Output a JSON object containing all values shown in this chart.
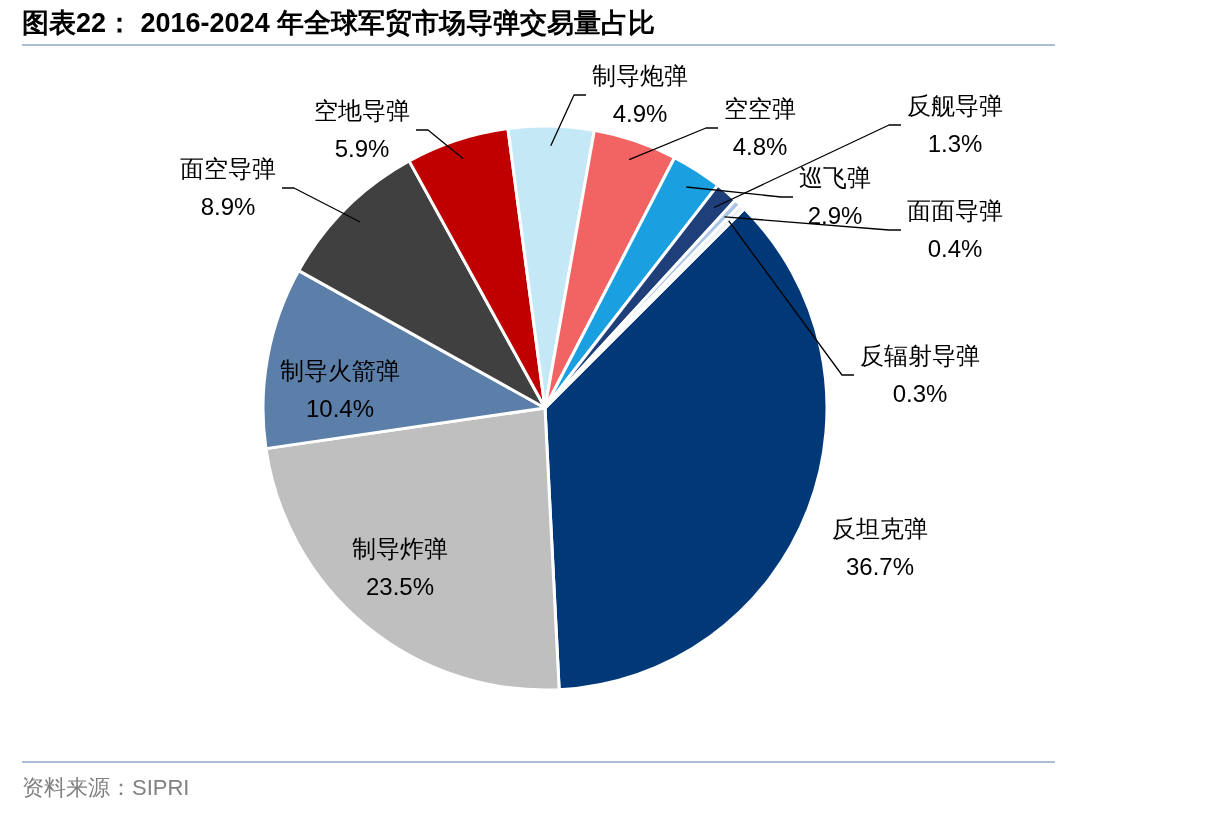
{
  "chart_data": {
    "type": "pie",
    "title": "图表22： 2016-2024 年全球军贸市场导弹交易量占比",
    "categories": [
      "反坦克弹",
      "制导炸弹",
      "制导火箭弹",
      "面空导弹",
      "空地导弹",
      "制导炮弹",
      "空空弹",
      "巡飞弹",
      "反舰导弹",
      "面面导弹",
      "反辐射导弹"
    ],
    "values": [
      36.7,
      23.5,
      10.4,
      8.9,
      5.9,
      4.9,
      4.8,
      2.9,
      1.3,
      0.4,
      0.3
    ],
    "colors": [
      "#003878",
      "#bfbfbf",
      "#5b7fa8",
      "#404040",
      "#c00000",
      "#c5e8f7",
      "#f26464",
      "#1aa0e0",
      "#1f3f7a",
      "#a9c4e4",
      "#e8eef6"
    ],
    "value_labels": [
      "36.7%",
      "23.5%",
      "10.4%",
      "8.9%",
      "5.9%",
      "4.9%",
      "4.8%",
      "2.9%",
      "1.3%",
      "0.4%",
      "0.3%"
    ],
    "annotations": [
      "资料来源：SIPRI"
    ]
  }
}
